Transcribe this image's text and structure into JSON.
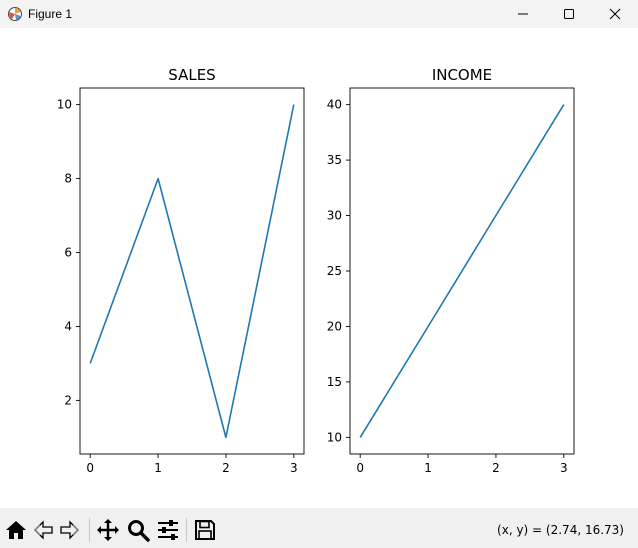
{
  "window": {
    "title": "Figure 1",
    "icons": {
      "app": "matplotlib-icon",
      "minimize": "minimize-icon",
      "maximize": "maximize-icon",
      "close": "close-icon"
    }
  },
  "toolbar": {
    "buttons": [
      "home-icon",
      "back-arrow-icon",
      "forward-arrow-icon",
      "pan-icon",
      "zoom-icon",
      "configure-subplots-icon",
      "save-icon"
    ],
    "coordinates": "(x, y) = (2.74, 16.73)"
  },
  "chart_data": [
    {
      "type": "line",
      "title": "SALES",
      "xlabel": "",
      "ylabel": "",
      "x": [
        0,
        1,
        2,
        3
      ],
      "series": [
        {
          "values": [
            3,
            8,
            1,
            10
          ],
          "color": "#1f77b4"
        }
      ],
      "xlim": [
        -0.15,
        3.15
      ],
      "ylim": [
        0.55,
        10.45
      ],
      "xticks": [
        0,
        1,
        2,
        3
      ],
      "yticks": [
        2,
        4,
        6,
        8,
        10
      ],
      "grid": false
    },
    {
      "type": "line",
      "title": "INCOME",
      "xlabel": "",
      "ylabel": "",
      "x": [
        0,
        1,
        2,
        3
      ],
      "series": [
        {
          "values": [
            10,
            20,
            30,
            40
          ],
          "color": "#1f77b4"
        }
      ],
      "xlim": [
        -0.15,
        3.15
      ],
      "ylim": [
        8.5,
        41.5
      ],
      "xticks": [
        0,
        1,
        2,
        3
      ],
      "yticks": [
        10,
        15,
        20,
        25,
        30,
        35,
        40
      ],
      "grid": false
    }
  ]
}
